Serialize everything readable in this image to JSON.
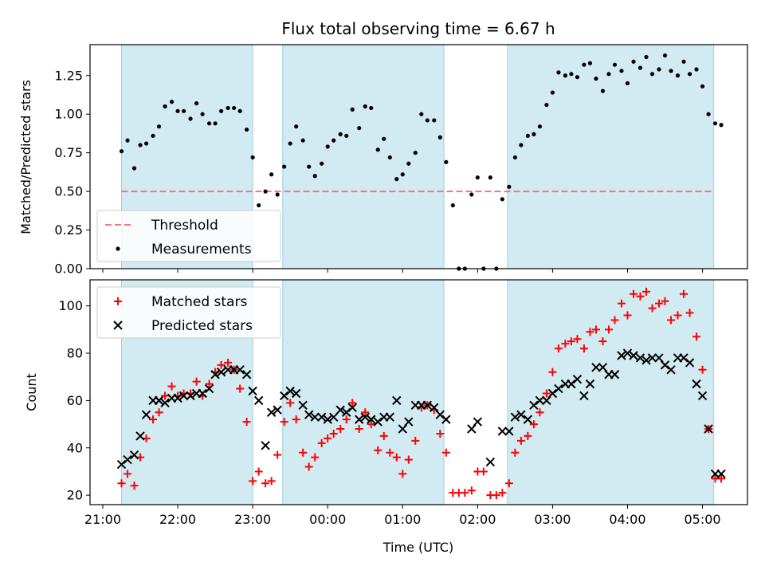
{
  "chart_data": {
    "type": "scatter",
    "title": "Flux total observing time = 6.67 h",
    "xlabel": "Time (UTC)",
    "x_unit": "hours since 21:00 UTC",
    "xlim": [
      -0.17,
      8.6
    ],
    "x_ticks": [
      {
        "value": 0,
        "label": "21:00"
      },
      {
        "value": 1,
        "label": "22:00"
      },
      {
        "value": 2,
        "label": "23:00"
      },
      {
        "value": 3,
        "label": "00:00"
      },
      {
        "value": 4,
        "label": "01:00"
      },
      {
        "value": 5,
        "label": "02:00"
      },
      {
        "value": 6,
        "label": "03:00"
      },
      {
        "value": 7,
        "label": "04:00"
      },
      {
        "value": 8,
        "label": "05:00"
      }
    ],
    "observing_windows": [
      [
        0.25,
        2.0
      ],
      [
        2.4,
        4.55
      ],
      [
        5.4,
        8.15
      ]
    ],
    "panels": [
      {
        "id": "ratio",
        "ylabel": "Matched/Predicted stars",
        "ylim": [
          0,
          1.45
        ],
        "y_ticks": [
          {
            "value": 0,
            "label": "0.00"
          },
          {
            "value": 0.25,
            "label": "0.25"
          },
          {
            "value": 0.5,
            "label": "0.50"
          },
          {
            "value": 0.75,
            "label": "0.75"
          },
          {
            "value": 1.0,
            "label": "1.00"
          },
          {
            "value": 1.25,
            "label": "1.25"
          }
        ],
        "threshold": {
          "name": "Threshold",
          "value": 0.5,
          "color": "#f07878"
        },
        "legend": [
          {
            "name": "Threshold",
            "marker": "dash"
          },
          {
            "name": "Measurements",
            "marker": "dot"
          }
        ],
        "series": [
          {
            "name": "Measurements",
            "marker": "dot",
            "color": "#000000",
            "x": [
              0.25,
              0.33,
              0.42,
              0.5,
              0.58,
              0.67,
              0.75,
              0.83,
              0.92,
              1.0,
              1.08,
              1.17,
              1.25,
              1.33,
              1.42,
              1.5,
              1.58,
              1.67,
              1.75,
              1.83,
              1.92,
              2.0,
              2.08,
              2.17,
              2.25,
              2.33,
              2.42,
              2.5,
              2.58,
              2.67,
              2.75,
              2.83,
              2.92,
              3.0,
              3.08,
              3.17,
              3.25,
              3.33,
              3.42,
              3.5,
              3.58,
              3.67,
              3.75,
              3.83,
              3.92,
              4.0,
              4.08,
              4.17,
              4.25,
              4.33,
              4.42,
              4.5,
              4.58,
              4.67,
              4.75,
              4.83,
              4.92,
              5.0,
              5.08,
              5.17,
              5.25,
              5.33,
              5.42,
              5.5,
              5.58,
              5.67,
              5.75,
              5.83,
              5.92,
              6.0,
              6.08,
              6.17,
              6.25,
              6.33,
              6.42,
              6.5,
              6.58,
              6.67,
              6.75,
              6.83,
              6.92,
              7.0,
              7.08,
              7.17,
              7.25,
              7.33,
              7.42,
              7.5,
              7.58,
              7.67,
              7.75,
              7.83,
              7.92,
              8.0,
              8.08,
              8.17,
              8.25
            ],
            "y": [
              0.76,
              0.83,
              0.65,
              0.8,
              0.81,
              0.86,
              0.92,
              1.05,
              1.08,
              1.02,
              1.02,
              0.97,
              1.07,
              1.0,
              0.94,
              0.94,
              1.02,
              1.04,
              1.04,
              1.02,
              0.9,
              0.72,
              0.41,
              0.5,
              0.61,
              0.48,
              0.66,
              0.81,
              0.92,
              0.83,
              0.66,
              0.6,
              0.68,
              0.79,
              0.83,
              0.87,
              0.86,
              1.03,
              0.91,
              1.05,
              1.04,
              0.77,
              0.84,
              0.72,
              0.58,
              0.61,
              0.68,
              0.75,
              1.0,
              0.96,
              0.96,
              0.85,
              0.69,
              0.41,
              0.0,
              0.0,
              0.48,
              0.59,
              0.0,
              0.59,
              0.0,
              0.45,
              0.53,
              0.72,
              0.8,
              0.86,
              0.87,
              0.92,
              1.06,
              1.14,
              1.27,
              1.25,
              1.26,
              1.24,
              1.32,
              1.33,
              1.23,
              1.15,
              1.26,
              1.32,
              1.28,
              1.2,
              1.34,
              1.3,
              1.37,
              1.26,
              1.29,
              1.38,
              1.28,
              1.25,
              1.34,
              1.26,
              1.29,
              1.18,
              1.0,
              0.94,
              0.93
            ]
          }
        ]
      },
      {
        "id": "count",
        "ylabel": "Count",
        "ylim": [
          16,
          111
        ],
        "y_ticks": [
          {
            "value": 20,
            "label": "20"
          },
          {
            "value": 40,
            "label": "40"
          },
          {
            "value": 60,
            "label": "60"
          },
          {
            "value": 80,
            "label": "80"
          },
          {
            "value": 100,
            "label": "100"
          }
        ],
        "legend": [
          {
            "name": "Matched stars",
            "marker": "plus"
          },
          {
            "name": "Predicted stars",
            "marker": "x"
          }
        ],
        "series": [
          {
            "name": "Matched stars",
            "marker": "plus",
            "color": "#ff0000",
            "x": [
              0.25,
              0.33,
              0.42,
              0.5,
              0.58,
              0.67,
              0.75,
              0.83,
              0.92,
              1.0,
              1.08,
              1.17,
              1.25,
              1.33,
              1.42,
              1.5,
              1.58,
              1.67,
              1.75,
              1.83,
              1.92,
              2.0,
              2.08,
              2.17,
              2.25,
              2.33,
              2.42,
              2.5,
              2.58,
              2.67,
              2.75,
              2.83,
              2.92,
              3.0,
              3.08,
              3.17,
              3.25,
              3.33,
              3.42,
              3.5,
              3.58,
              3.67,
              3.75,
              3.83,
              3.92,
              4.0,
              4.08,
              4.17,
              4.25,
              4.33,
              4.42,
              4.5,
              4.58,
              4.67,
              4.75,
              4.83,
              4.92,
              5.0,
              5.08,
              5.17,
              5.25,
              5.33,
              5.42,
              5.5,
              5.58,
              5.67,
              5.75,
              5.83,
              5.92,
              6.0,
              6.08,
              6.17,
              6.25,
              6.33,
              6.42,
              6.5,
              6.58,
              6.67,
              6.75,
              6.83,
              6.92,
              7.0,
              7.08,
              7.17,
              7.25,
              7.33,
              7.42,
              7.5,
              7.58,
              7.67,
              7.75,
              7.83,
              7.92,
              8.0,
              8.08,
              8.17,
              8.25
            ],
            "y": [
              25,
              29,
              24,
              36,
              44,
              52,
              55,
              62,
              66,
              62,
              63,
              63,
              68,
              62,
              67,
              72,
              75,
              76,
              73,
              65,
              51,
              26,
              30,
              25,
              26,
              37,
              51,
              59,
              52,
              38,
              32,
              36,
              42,
              44,
              46,
              48,
              52,
              59,
              48,
              55,
              50,
              39,
              45,
              38,
              36,
              29,
              35,
              43,
              57,
              58,
              56,
              46,
              38,
              21,
              21,
              21,
              22,
              30,
              30,
              20,
              20,
              21,
              25,
              38,
              43,
              45,
              50,
              55,
              63,
              72,
              82,
              84,
              85,
              86,
              82,
              89,
              90,
              85,
              90,
              94,
              101,
              96,
              105,
              104,
              106,
              99,
              101,
              102,
              94,
              96,
              105,
              97,
              87,
              73,
              48,
              27,
              27
            ]
          },
          {
            "name": "Predicted stars",
            "marker": "x",
            "color": "#000000",
            "x": [
              0.25,
              0.33,
              0.42,
              0.5,
              0.58,
              0.67,
              0.75,
              0.83,
              0.92,
              1.0,
              1.08,
              1.17,
              1.25,
              1.33,
              1.42,
              1.5,
              1.58,
              1.67,
              1.75,
              1.83,
              1.92,
              2.0,
              2.08,
              2.17,
              2.25,
              2.33,
              2.42,
              2.5,
              2.58,
              2.67,
              2.75,
              2.83,
              2.92,
              3.0,
              3.08,
              3.17,
              3.25,
              3.33,
              3.42,
              3.5,
              3.58,
              3.67,
              3.75,
              3.83,
              3.92,
              4.0,
              4.08,
              4.17,
              4.25,
              4.33,
              4.42,
              4.5,
              4.58,
              4.67,
              4.75,
              4.83,
              4.92,
              5.0,
              5.08,
              5.17,
              5.25,
              5.33,
              5.42,
              5.5,
              5.58,
              5.67,
              5.75,
              5.83,
              5.92,
              6.0,
              6.08,
              6.17,
              6.25,
              6.33,
              6.42,
              6.5,
              6.58,
              6.67,
              6.75,
              6.83,
              6.92,
              7.0,
              7.08,
              7.17,
              7.25,
              7.33,
              7.42,
              7.5,
              7.58,
              7.67,
              7.75,
              7.83,
              7.92,
              8.0,
              8.08,
              8.17,
              8.25
            ],
            "y": [
              33,
              35,
              37,
              45,
              54,
              60,
              60,
              59,
              61,
              61,
              62,
              62,
              63,
              63,
              65,
              71,
              72,
              73,
              73,
              73,
              71,
              64,
              60,
              41,
              55,
              56,
              62,
              64,
              63,
              58,
              54,
              53,
              53,
              52,
              53,
              56,
              55,
              57,
              52,
              53,
              52,
              51,
              53,
              53,
              60,
              48,
              51,
              58,
              58,
              58,
              57,
              54,
              52,
              null,
              null,
              null,
              48,
              51,
              null,
              34,
              null,
              47,
              47,
              53,
              54,
              52,
              58,
              60,
              60,
              63,
              65,
              67,
              67,
              69,
              62,
              67,
              74,
              74,
              71,
              71,
              79,
              80,
              79,
              78,
              77,
              78,
              78,
              75,
              73,
              78,
              78,
              76,
              67,
              62,
              48,
              29,
              29
            ]
          }
        ]
      }
    ]
  }
}
